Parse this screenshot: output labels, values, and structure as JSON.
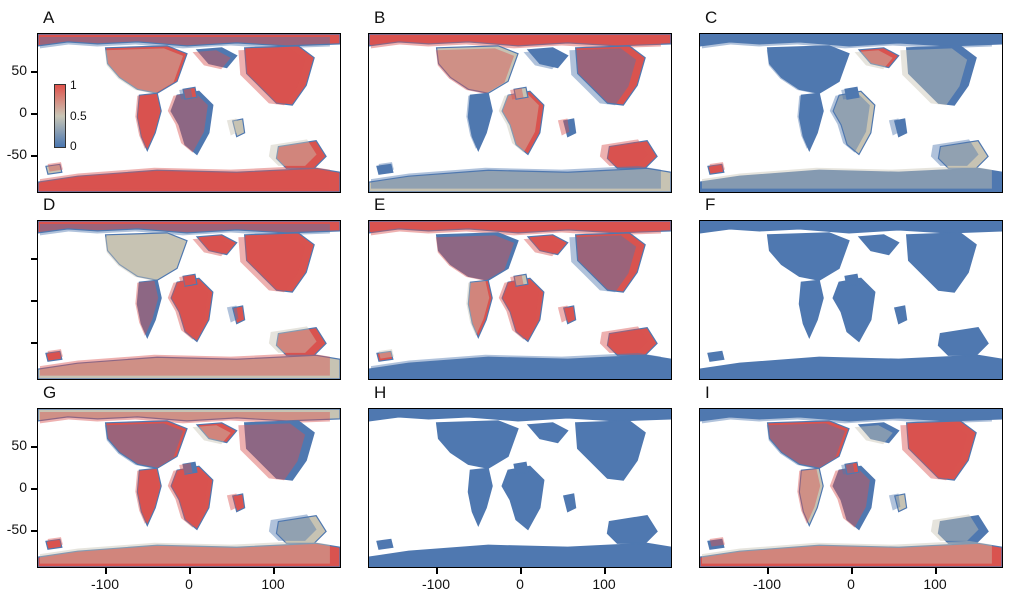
{
  "panels": [
    {
      "label": "A",
      "mix": [
        0.62,
        0.2,
        0.18
      ]
    },
    {
      "label": "B",
      "mix": [
        0.35,
        0.25,
        0.4
      ]
    },
    {
      "label": "C",
      "mix": [
        0.12,
        0.2,
        0.68
      ]
    },
    {
      "label": "D",
      "mix": [
        0.7,
        0.12,
        0.18
      ]
    },
    {
      "label": "E",
      "mix": [
        0.72,
        0.14,
        0.14
      ]
    },
    {
      "label": "F",
      "mix": [
        0.0,
        0.02,
        0.98
      ]
    },
    {
      "label": "G",
      "mix": [
        0.68,
        0.14,
        0.18
      ]
    },
    {
      "label": "H",
      "mix": [
        0.0,
        0.02,
        0.98
      ]
    },
    {
      "label": "I",
      "mix": [
        0.4,
        0.25,
        0.35
      ]
    }
  ],
  "y_ticks": [
    "50",
    "0",
    "-50"
  ],
  "x_ticks": [
    "-100",
    "0",
    "100"
  ],
  "colorbar": {
    "max": "1",
    "mid": "0.5",
    "min": "0"
  },
  "colors": {
    "high": "#d9534f",
    "mid": "#c7c3b3",
    "low": "#4f78b0"
  }
}
